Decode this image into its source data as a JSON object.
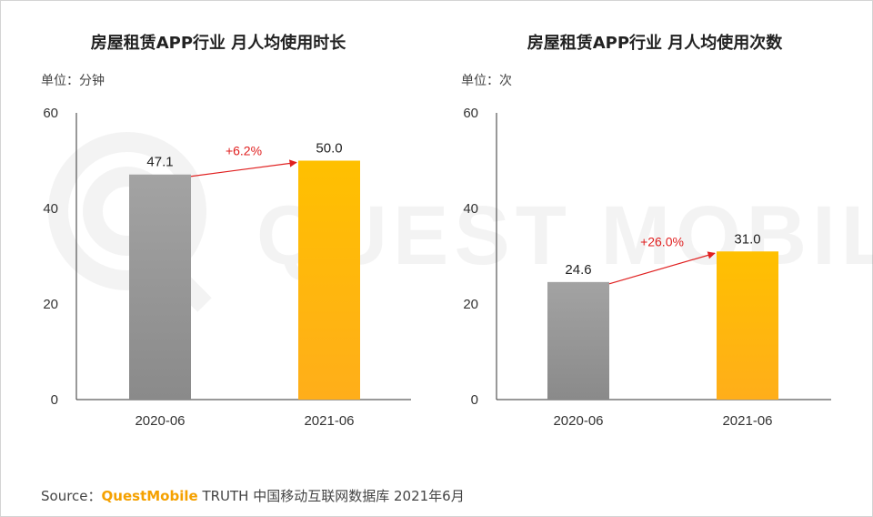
{
  "source": {
    "prefix": "Source：",
    "brand": "QuestMobile",
    "suffix": "TRUTH 中国移动互联网数据库 2021年6月"
  },
  "watermark": {
    "text": "QUEST MOBILE"
  },
  "colors": {
    "bar_2020": "#8a8a8a",
    "bar_2021": "#ffc000",
    "growth_arrow": "#e02020",
    "axis": "#333333"
  },
  "charts": [
    {
      "unit_label": "单位：分钟",
      "chart_data": {
        "type": "bar",
        "title": "房屋租赁APP行业 月人均使用时长",
        "categories": [
          "2020-06",
          "2021-06"
        ],
        "values": [
          47.1,
          50.0
        ],
        "value_labels": [
          "47.1",
          "50.0"
        ],
        "growth_label": "+6.2%",
        "ylim": [
          0,
          60
        ],
        "yticks": [
          0,
          20,
          40,
          60
        ],
        "ytick_labels": [
          "0",
          "20",
          "40",
          "60"
        ],
        "grid": false
      }
    },
    {
      "unit_label": "单位：次",
      "chart_data": {
        "type": "bar",
        "title": "房屋租赁APP行业 月人均使用次数",
        "categories": [
          "2020-06",
          "2021-06"
        ],
        "values": [
          24.6,
          31.0
        ],
        "value_labels": [
          "24.6",
          "31.0"
        ],
        "growth_label": "+26.0%",
        "ylim": [
          0,
          60
        ],
        "yticks": [
          0,
          20,
          40,
          60
        ],
        "ytick_labels": [
          "0",
          "20",
          "40",
          "60"
        ],
        "grid": false
      }
    }
  ]
}
